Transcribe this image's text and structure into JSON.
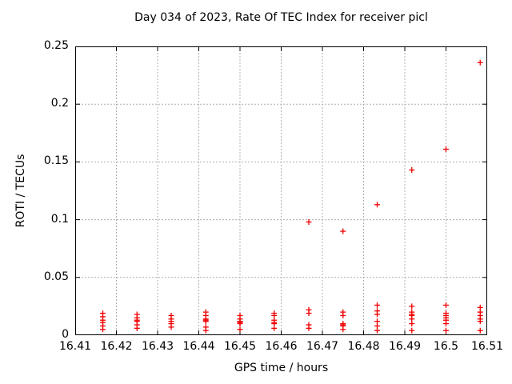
{
  "chart_data": {
    "type": "scatter",
    "title": "Day 034 of 2023, Rate Of TEC Index for receiver picl",
    "xlabel": "GPS time / hours",
    "ylabel": "ROTI / TECUs",
    "xlim": [
      16.41,
      16.51
    ],
    "ylim": [
      0,
      0.25
    ],
    "xtick_values": [
      16.41,
      16.42,
      16.43,
      16.44,
      16.45,
      16.46,
      16.47,
      16.48,
      16.49,
      16.5,
      16.51
    ],
    "xtick_labels": [
      "16.41",
      "16.42",
      "16.43",
      "16.44",
      "16.45",
      "16.46",
      "16.47",
      "16.48",
      "16.49",
      "16.5",
      "16.51"
    ],
    "ytick_values": [
      0,
      0.05,
      0.1,
      0.15,
      0.2,
      0.25
    ],
    "ytick_labels": [
      "0",
      "0.05",
      "0.1",
      "0.15",
      "0.2",
      "0.25"
    ],
    "grid": true,
    "legend": "none",
    "marker": "plus",
    "marker_color": "#ee0000",
    "grid_color": "#b0b0b0",
    "border_color": "#000000",
    "series": [
      {
        "name": "ROTI",
        "points": [
          [
            16.4167,
            0.019
          ],
          [
            16.4167,
            0.016
          ],
          [
            16.4167,
            0.013
          ],
          [
            16.4167,
            0.011
          ],
          [
            16.4167,
            0.008
          ],
          [
            16.4167,
            0.005
          ],
          [
            16.425,
            0.018
          ],
          [
            16.425,
            0.015
          ],
          [
            16.425,
            0.013
          ],
          [
            16.425,
            0.012
          ],
          [
            16.425,
            0.009
          ],
          [
            16.425,
            0.006
          ],
          [
            16.4333,
            0.017
          ],
          [
            16.4333,
            0.014
          ],
          [
            16.4333,
            0.012
          ],
          [
            16.4333,
            0.01
          ],
          [
            16.4333,
            0.007
          ],
          [
            16.4417,
            0.02
          ],
          [
            16.4417,
            0.017
          ],
          [
            16.4417,
            0.014
          ],
          [
            16.4417,
            0.013
          ],
          [
            16.4417,
            0.012
          ],
          [
            16.4417,
            0.007
          ],
          [
            16.4417,
            0.004
          ],
          [
            16.45,
            0.017
          ],
          [
            16.45,
            0.014
          ],
          [
            16.45,
            0.012
          ],
          [
            16.45,
            0.011
          ],
          [
            16.45,
            0.01
          ],
          [
            16.45,
            0.005
          ],
          [
            16.4583,
            0.019
          ],
          [
            16.4583,
            0.017
          ],
          [
            16.4583,
            0.013
          ],
          [
            16.4583,
            0.011
          ],
          [
            16.4583,
            0.01
          ],
          [
            16.4583,
            0.006
          ],
          [
            16.4667,
            0.098
          ],
          [
            16.4667,
            0.022
          ],
          [
            16.4667,
            0.019
          ],
          [
            16.4667,
            0.009
          ],
          [
            16.4667,
            0.006
          ],
          [
            16.475,
            0.09
          ],
          [
            16.475,
            0.02
          ],
          [
            16.475,
            0.017
          ],
          [
            16.475,
            0.01
          ],
          [
            16.475,
            0.009
          ],
          [
            16.475,
            0.008
          ],
          [
            16.475,
            0.005
          ],
          [
            16.4833,
            0.113
          ],
          [
            16.4833,
            0.026
          ],
          [
            16.4833,
            0.021
          ],
          [
            16.4833,
            0.018
          ],
          [
            16.4833,
            0.012
          ],
          [
            16.4833,
            0.008
          ],
          [
            16.4833,
            0.004
          ],
          [
            16.4917,
            0.143
          ],
          [
            16.4917,
            0.025
          ],
          [
            16.4917,
            0.02
          ],
          [
            16.4917,
            0.018
          ],
          [
            16.4917,
            0.017
          ],
          [
            16.4917,
            0.014
          ],
          [
            16.4917,
            0.01
          ],
          [
            16.4917,
            0.004
          ],
          [
            16.5,
            0.161
          ],
          [
            16.5,
            0.026
          ],
          [
            16.5,
            0.019
          ],
          [
            16.5,
            0.017
          ],
          [
            16.5,
            0.015
          ],
          [
            16.5,
            0.013
          ],
          [
            16.5,
            0.01
          ],
          [
            16.5,
            0.004
          ],
          [
            16.5083,
            0.236
          ],
          [
            16.5083,
            0.024
          ],
          [
            16.5083,
            0.02
          ],
          [
            16.5083,
            0.017
          ],
          [
            16.5083,
            0.014
          ],
          [
            16.5083,
            0.012
          ],
          [
            16.5083,
            0.004
          ]
        ]
      }
    ]
  }
}
